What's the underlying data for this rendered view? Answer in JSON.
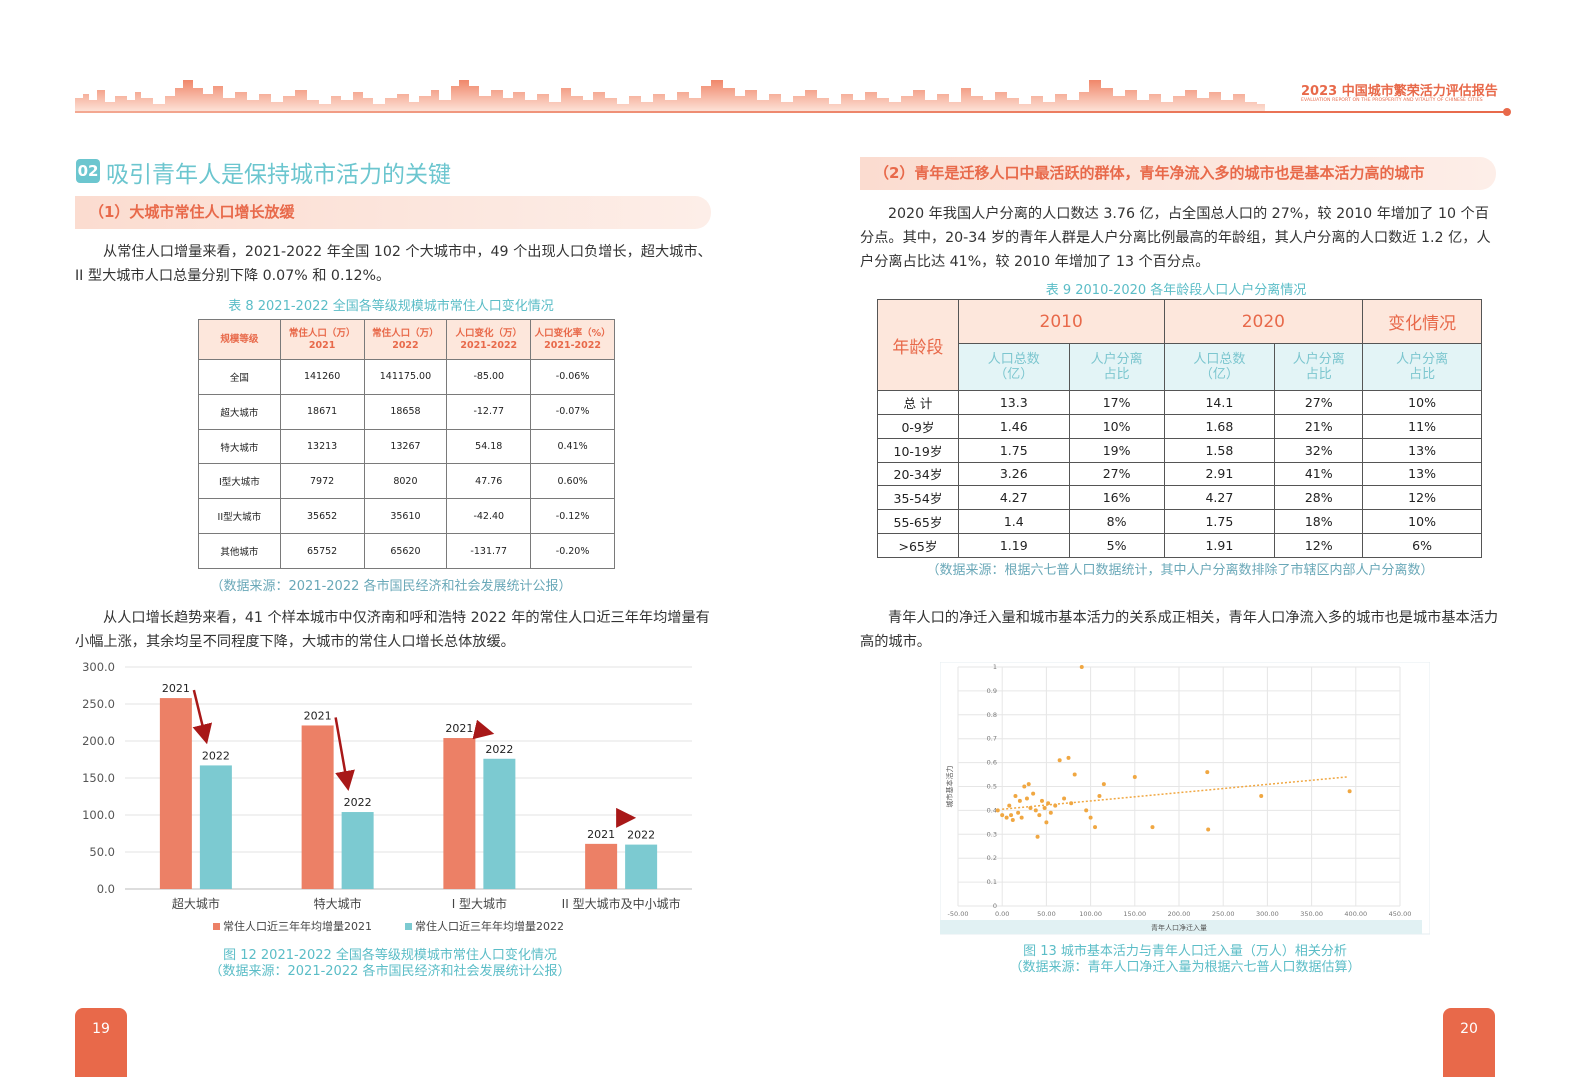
{
  "header": {
    "report_title": "2023 中国城市繁荣活力评估报告",
    "report_subtitle": "EVALUATION REPORT ON THE PROSPERITY AND VITALITY OF CHINESE CITIES"
  },
  "left": {
    "section_badge": "02",
    "section_title": "吸引青年人是保持城市活力的关键",
    "subhead": "（1）大城市常住人口增长放缓",
    "para1": "从常住人口增量来看，2021-2022 年全国 102 个大城市中，49 个出现人口负增长，超大城市、II 型大城市人口总量分别下降 0.07% 和 0.12%。",
    "table8": {
      "caption": "表 8  2021-2022 全国各等级规模城市常住人口变化情况",
      "headers": [
        "规模等级",
        "常住人口（万）\n2021",
        "常住人口（万）\n2022",
        "人口变化（万）\n2021-2022",
        "人口变化率（%）\n2021-2022"
      ],
      "rows": [
        [
          "全国",
          "141260",
          "141175.00",
          "-85.00",
          "-0.06%"
        ],
        [
          "超大城市",
          "18671",
          "18658",
          "-12.77",
          "-0.07%"
        ],
        [
          "特大城市",
          "13213",
          "13267",
          "54.18",
          "0.41%"
        ],
        [
          "I型大城市",
          "7972",
          "8020",
          "47.76",
          "0.60%"
        ],
        [
          "II型大城市",
          "35652",
          "35610",
          "-42.40",
          "-0.12%"
        ],
        [
          "其他城市",
          "65752",
          "65620",
          "-131.77",
          "-0.20%"
        ]
      ],
      "source": "（数据来源：2021-2022 各市国民经济和社会发展统计公报）"
    },
    "para2": "从人口增长趋势来看，41 个样本城市中仅济南和呼和浩特 2022 年的常住人口近三年年均增量有小幅上涨，其余均呈不同程度下降，大城市的常住人口增长总体放缓。",
    "fig12_caption": "图 12  2021-2022 全国各等级规模城市常住人口变化情况",
    "fig12_source": "（数据来源：2021-2022 各市国民经济和社会发展统计公报）",
    "page_number": "19"
  },
  "right": {
    "subhead": "（2）青年是迁移人口中最活跃的群体，青年净流入多的城市也是基本活力高的城市",
    "para1": "2020 年我国人户分离的人口数达 3.76 亿，占全国总人口的 27%，较 2010 年增加了 10 个百分点。其中，20-34 岁的青年人群是人户分离比例最高的年龄组，其人户分离的人口数近 1.2 亿，人户分离占比达 41%，较 2010 年增加了 13 个百分点。",
    "table9": {
      "caption": "表 9  2010-2020 各年龄段人口人户分离情况",
      "col_age": "年龄段",
      "group_2010": "2010",
      "group_2020": "2020",
      "group_change": "变化情况",
      "sub_total": "人口总数\n（亿）",
      "sub_ratio": "人户分离\n占比",
      "rows": [
        [
          "总 计",
          "13.3",
          "17%",
          "14.1",
          "27%",
          "10%"
        ],
        [
          "0-9岁",
          "1.46",
          "10%",
          "1.68",
          "21%",
          "11%"
        ],
        [
          "10-19岁",
          "1.75",
          "19%",
          "1.58",
          "32%",
          "13%"
        ],
        [
          "20-34岁",
          "3.26",
          "27%",
          "2.91",
          "41%",
          "13%"
        ],
        [
          "35-54岁",
          "4.27",
          "16%",
          "4.27",
          "28%",
          "12%"
        ],
        [
          "55-65岁",
          "1.4",
          "8%",
          "1.75",
          "18%",
          "10%"
        ],
        [
          ">65岁",
          "1.19",
          "5%",
          "1.91",
          "12%",
          "6%"
        ]
      ],
      "source": "（数据来源：根据六七普人口数据统计，其中人户分离数排除了市辖区内部人户分离数）"
    },
    "para2": "青年人口的净迁入量和城市基本活力的关系成正相关，青年人口净流入多的城市也是城市基本活力高的城市。",
    "fig13_caption": "图 13  城市基本活力与青年人口迁入量（万人）相关分析",
    "fig13_source": "（数据来源：青年人口净迁入量为根据六七普人口数据估算）",
    "page_number": "20"
  },
  "chart_data": [
    {
      "type": "bar",
      "categories": [
        "超大城市",
        "特大城市",
        "I 型大城市",
        "II 型大城市及中小城市"
      ],
      "series": [
        {
          "name": "常住人口近三年年均增量2021",
          "values": [
            258,
            221,
            204,
            61
          ],
          "color": "#ec8066"
        },
        {
          "name": "常住人口近三年年均增量2022",
          "values": [
            167,
            104,
            176,
            60
          ],
          "color": "#7ccad1"
        }
      ],
      "bar_labels": [
        "2021",
        "2022"
      ],
      "yticks": [
        "0.0",
        "50.0",
        "100.0",
        "150.0",
        "200.0",
        "250.0",
        "300.0"
      ],
      "ylim": [
        0,
        300
      ],
      "legend": "bottom",
      "grid": true,
      "arrow_color": "#a81818"
    },
    {
      "type": "scatter",
      "xlabel": "青年人口净迁入量",
      "ylabel": "城市基本活力",
      "xticks": [
        "-50.00",
        "0.00",
        "50.00",
        "100.00",
        "150.00",
        "200.00",
        "250.00",
        "300.00",
        "350.00",
        "400.00",
        "450.00"
      ],
      "yticks": [
        "0",
        "0.1",
        "0.2",
        "0.3",
        "0.4",
        "0.5",
        "0.6",
        "0.7",
        "0.8",
        "0.9",
        "1"
      ],
      "xlim": [
        -50,
        450
      ],
      "ylim": [
        0,
        1
      ],
      "grid": true,
      "trendline": [
        [
          0,
          0.405
        ],
        [
          390,
          0.54
        ]
      ],
      "points": [
        [
          -5,
          0.4
        ],
        [
          0,
          0.38
        ],
        [
          5,
          0.37
        ],
        [
          8,
          0.42
        ],
        [
          10,
          0.38
        ],
        [
          12,
          0.36
        ],
        [
          15,
          0.46
        ],
        [
          18,
          0.39
        ],
        [
          20,
          0.44
        ],
        [
          22,
          0.37
        ],
        [
          25,
          0.5
        ],
        [
          28,
          0.45
        ],
        [
          30,
          0.51
        ],
        [
          32,
          0.41
        ],
        [
          35,
          0.47
        ],
        [
          38,
          0.4
        ],
        [
          40,
          0.29
        ],
        [
          42,
          0.38
        ],
        [
          45,
          0.44
        ],
        [
          48,
          0.41
        ],
        [
          50,
          0.35
        ],
        [
          52,
          0.43
        ],
        [
          55,
          0.39
        ],
        [
          60,
          0.42
        ],
        [
          65,
          0.61
        ],
        [
          70,
          0.45
        ],
        [
          75,
          0.62
        ],
        [
          78,
          0.43
        ],
        [
          82,
          0.55
        ],
        [
          90,
          1.0
        ],
        [
          95,
          0.4
        ],
        [
          100,
          0.37
        ],
        [
          105,
          0.33
        ],
        [
          110,
          0.46
        ],
        [
          115,
          0.51
        ],
        [
          150,
          0.54
        ],
        [
          170,
          0.33
        ],
        [
          232,
          0.56
        ],
        [
          233,
          0.32
        ],
        [
          293,
          0.46
        ],
        [
          393,
          0.48
        ]
      ],
      "point_color": "#f0a742",
      "line_color": "#f0a742"
    }
  ]
}
